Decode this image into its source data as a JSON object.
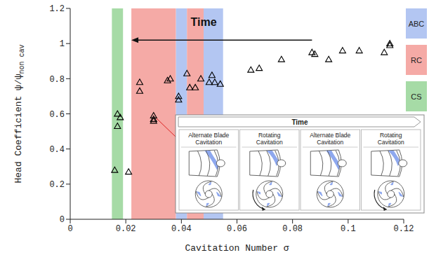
{
  "chart_data": {
    "type": "scatter",
    "xlabel": "Cavitation Number σ",
    "ylabel": "Head Coefficient ψ/ψ",
    "ylabel_subscript": "non cav",
    "x": [
      0.016,
      0.017,
      0.017,
      0.018,
      0.021,
      0.025,
      0.025,
      0.03,
      0.03,
      0.03,
      0.035,
      0.036,
      0.039,
      0.039,
      0.042,
      0.043,
      0.045,
      0.047,
      0.05,
      0.051,
      0.052,
      0.054,
      0.065,
      0.068,
      0.076,
      0.087,
      0.088,
      0.093,
      0.098,
      0.104,
      0.113,
      0.115,
      0.115
    ],
    "y": [
      0.28,
      0.6,
      0.53,
      0.58,
      0.27,
      0.78,
      0.73,
      0.59,
      0.57,
      0.56,
      0.79,
      0.8,
      0.7,
      0.68,
      0.83,
      0.75,
      0.75,
      0.8,
      0.78,
      0.82,
      0.78,
      0.77,
      0.85,
      0.86,
      0.91,
      0.95,
      0.94,
      0.91,
      0.96,
      0.96,
      0.95,
      0.99,
      1.0
    ],
    "color": "#000000",
    "marker": "triangle",
    "xlim": [
      0,
      0.12
    ],
    "xticks": [
      0,
      0.02,
      0.04,
      0.06,
      0.08,
      0.1,
      0.12
    ],
    "ylim": [
      0,
      1.2
    ],
    "yticks": [
      0,
      0.2,
      0.4,
      0.6,
      0.8,
      1,
      1.2
    ],
    "grid": false,
    "legend": "right",
    "bands": [
      {
        "name": "ABC",
        "color": "#b3c6f2",
        "ranges": [
          [
            0.038,
            0.042
          ],
          [
            0.048,
            0.055
          ]
        ]
      },
      {
        "name": "RC",
        "color": "#f5aaa6",
        "ranges": [
          [
            0.022,
            0.038
          ],
          [
            0.042,
            0.048
          ]
        ]
      },
      {
        "name": "CS",
        "color": "#a6dba6",
        "ranges": [
          [
            0.015,
            0.019
          ]
        ]
      }
    ],
    "annotations": [
      {
        "text": "Time",
        "x": 0.048,
        "y": 1.1,
        "arrow_from": [
          0.087,
          1.02
        ],
        "arrow_to": [
          0.022,
          1.02
        ]
      }
    ],
    "inset": {
      "header": "Time",
      "panels": [
        "Alternate Blade Cavitation",
        "Rotating Cavitation",
        "Alternate Blade Cavitation",
        "Rotating Cavitation"
      ],
      "pointer": [
        0.031,
        0.575
      ]
    }
  }
}
